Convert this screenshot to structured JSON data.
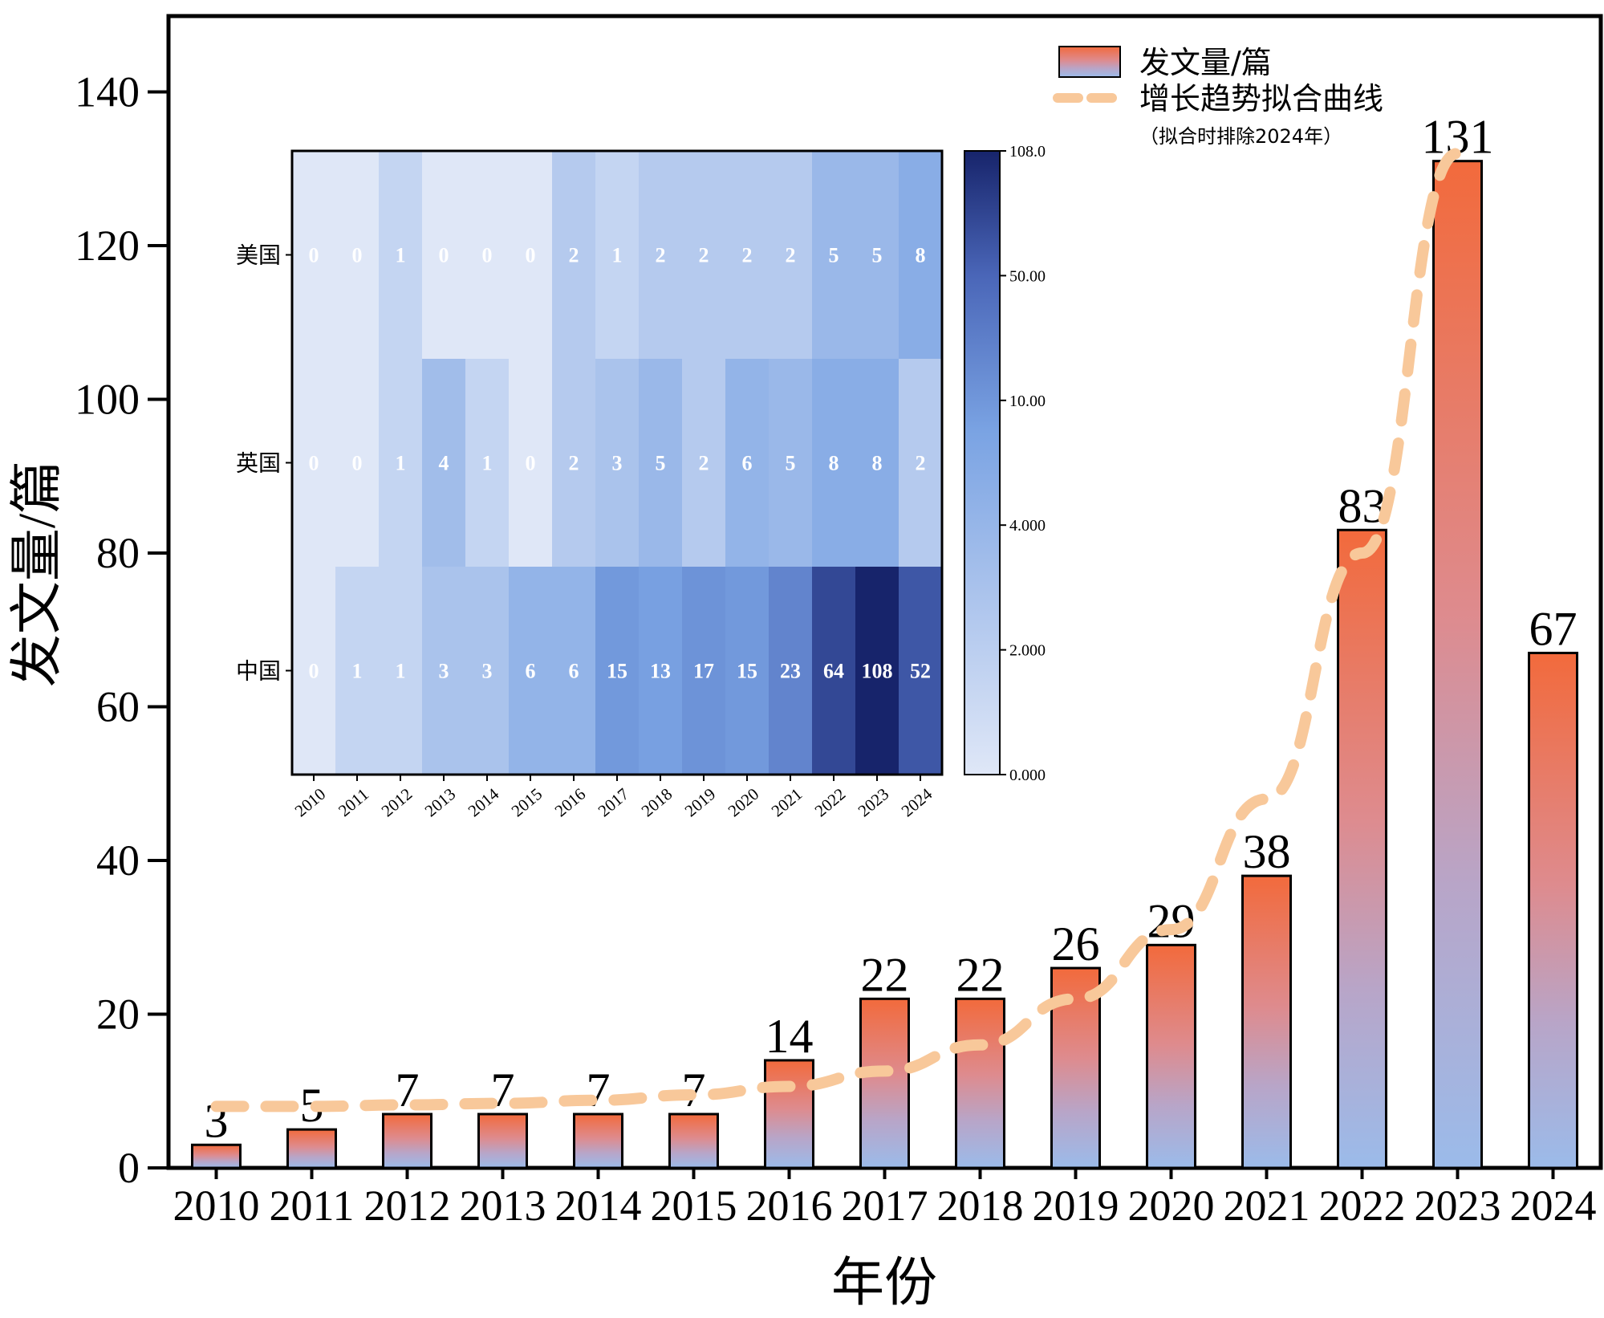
{
  "chart_data": [
    {
      "type": "bar",
      "title": "",
      "xlabel": "年份",
      "ylabel": "发文量/篇",
      "ylim": [
        0,
        148
      ],
      "yticks": [
        0,
        20,
        40,
        60,
        80,
        100,
        120,
        140
      ],
      "categories": [
        "2010",
        "2011",
        "2012",
        "2013",
        "2014",
        "2015",
        "2016",
        "2017",
        "2018",
        "2019",
        "2020",
        "2021",
        "2022",
        "2023",
        "2024"
      ],
      "values": [
        3,
        5,
        7,
        7,
        7,
        7,
        14,
        22,
        22,
        26,
        29,
        38,
        83,
        131,
        67
      ],
      "series": [
        {
          "name": "发文量/篇",
          "type": "bar",
          "values": [
            3,
            5,
            7,
            7,
            7,
            7,
            14,
            22,
            22,
            26,
            29,
            38,
            83,
            131,
            67
          ]
        },
        {
          "name": "增长趋势拟合曲线",
          "type": "line",
          "style": "dashed",
          "x": [
            2010,
            2011,
            2012,
            2013,
            2014,
            2015,
            2016,
            2017,
            2018,
            2019,
            2020,
            2021,
            2022,
            2023
          ],
          "values": [
            8,
            8,
            8.2,
            8.4,
            8.8,
            9.5,
            10.6,
            12.6,
            16,
            22,
            31,
            48,
            80,
            132
          ]
        }
      ],
      "legend": {
        "position": "top-right",
        "entries": [
          "发文量/篇",
          "增长趋势拟合曲线"
        ],
        "note": "（拟合时排除2024年）"
      },
      "colors": {
        "bar_top": "#f26a3c",
        "bar_bottom": "#9bbbea",
        "fit_line": "#f8c89a"
      }
    },
    {
      "type": "heatmap",
      "title": "",
      "rows": [
        "美国",
        "英国",
        "中国"
      ],
      "columns": [
        "2010",
        "2011",
        "2012",
        "2013",
        "2014",
        "2015",
        "2016",
        "2017",
        "2018",
        "2019",
        "2020",
        "2021",
        "2022",
        "2023",
        "2024"
      ],
      "values": [
        [
          0,
          0,
          1,
          0,
          0,
          0,
          2,
          1,
          2,
          2,
          2,
          2,
          5,
          5,
          8
        ],
        [
          0,
          0,
          1,
          4,
          1,
          0,
          2,
          3,
          5,
          2,
          6,
          5,
          8,
          8,
          2
        ],
        [
          0,
          1,
          1,
          3,
          3,
          6,
          6,
          15,
          13,
          17,
          15,
          23,
          64,
          108,
          52
        ]
      ],
      "colorbar": {
        "scale": "log",
        "range": [
          0,
          108
        ],
        "tick_labels": [
          "0.000",
          "2.000",
          "4.000",
          "10.00",
          "50.00",
          "108.0"
        ],
        "color_low": "#dfe7f7",
        "color_high": "#17246b"
      }
    }
  ]
}
